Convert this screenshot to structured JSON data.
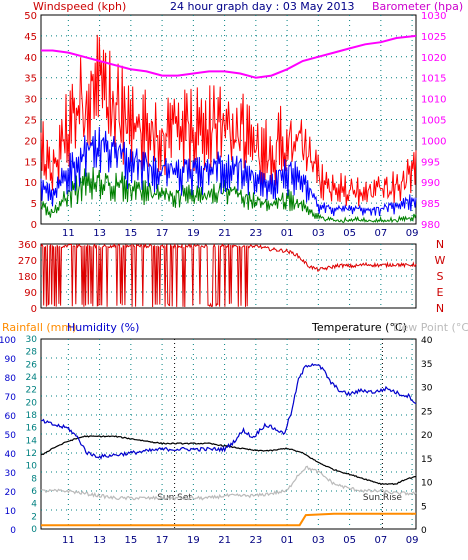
{
  "colors": {
    "wind_gust": "#ff0000",
    "wind_avg": "#0000ff",
    "wind_min": "#008000",
    "barometer": "#ff00ff",
    "wind_dir": "#dd0000",
    "rainfall": "#ff8c00",
    "humidity": "#0000cc",
    "temperature": "#000000",
    "dew_point": "#bbbbbb",
    "grid": "#008080",
    "left_axis_red": "#cc0000",
    "teal_axis": "#008080"
  },
  "chart_data": [
    {
      "type": "line",
      "name": "wind-barometer",
      "title": "24 hour graph day : 03 May 2013",
      "ylabel_left": "Windspeed (kph)",
      "ylabel_right": "Barometer (hpa)",
      "ylim_left": [
        0,
        50
      ],
      "ylim_right": [
        980,
        1030
      ],
      "yticks_left": [
        "0",
        "5",
        "10",
        "15",
        "20",
        "25",
        "30",
        "35",
        "40",
        "45",
        "50"
      ],
      "yticks_right": [
        "980",
        "985",
        "990",
        "995",
        "1000",
        "1005",
        "1010",
        "1015",
        "1020",
        "1025",
        "1030"
      ],
      "x_time_hours": [
        9.25,
        33.25
      ],
      "xticks": [
        "11",
        "13",
        "15",
        "17",
        "19",
        "21",
        "23",
        "01",
        "03",
        "05",
        "07",
        "09"
      ],
      "xtick_hours": [
        11,
        13,
        15,
        17,
        19,
        21,
        23,
        25,
        27,
        29,
        31,
        33
      ],
      "barometer": [
        {
          "t": 9.25,
          "v": 1021.5
        },
        {
          "t": 10,
          "v": 1021.5
        },
        {
          "t": 11,
          "v": 1021
        },
        {
          "t": 12,
          "v": 1020
        },
        {
          "t": 13,
          "v": 1019
        },
        {
          "t": 14,
          "v": 1018
        },
        {
          "t": 15,
          "v": 1017
        },
        {
          "t": 16,
          "v": 1016.5
        },
        {
          "t": 17,
          "v": 1015.5
        },
        {
          "t": 18,
          "v": 1015.5
        },
        {
          "t": 19,
          "v": 1016
        },
        {
          "t": 20,
          "v": 1016.5
        },
        {
          "t": 21,
          "v": 1016.5
        },
        {
          "t": 22,
          "v": 1016
        },
        {
          "t": 23,
          "v": 1015
        },
        {
          "t": 24,
          "v": 1015.5
        },
        {
          "t": 25,
          "v": 1017
        },
        {
          "t": 26,
          "v": 1019
        },
        {
          "t": 27,
          "v": 1020
        },
        {
          "t": 28,
          "v": 1021
        },
        {
          "t": 29,
          "v": 1022
        },
        {
          "t": 30,
          "v": 1023
        },
        {
          "t": 31,
          "v": 1023.5
        },
        {
          "t": 32,
          "v": 1024.5
        },
        {
          "t": 33.25,
          "v": 1025
        }
      ],
      "wind_gust_envelope": [
        {
          "t": 9.25,
          "v": 20
        },
        {
          "t": 10,
          "v": 14
        },
        {
          "t": 11,
          "v": 26
        },
        {
          "t": 12,
          "v": 33
        },
        {
          "t": 13,
          "v": 36
        },
        {
          "t": 14,
          "v": 33
        },
        {
          "t": 15,
          "v": 30
        },
        {
          "t": 16,
          "v": 27
        },
        {
          "t": 17,
          "v": 25
        },
        {
          "t": 18,
          "v": 26
        },
        {
          "t": 19,
          "v": 25
        },
        {
          "t": 20,
          "v": 26
        },
        {
          "t": 21,
          "v": 28
        },
        {
          "t": 22,
          "v": 25
        },
        {
          "t": 23,
          "v": 20
        },
        {
          "t": 24,
          "v": 19
        },
        {
          "t": 25,
          "v": 24
        },
        {
          "t": 26,
          "v": 22
        },
        {
          "t": 27,
          "v": 13
        },
        {
          "t": 28,
          "v": 10
        },
        {
          "t": 29,
          "v": 9
        },
        {
          "t": 30,
          "v": 9
        },
        {
          "t": 31,
          "v": 9
        },
        {
          "t": 32,
          "v": 10
        },
        {
          "t": 33.25,
          "v": 15
        }
      ],
      "wind_avg_envelope": [
        {
          "t": 9.25,
          "v": 11
        },
        {
          "t": 10,
          "v": 8
        },
        {
          "t": 11,
          "v": 15
        },
        {
          "t": 12,
          "v": 19
        },
        {
          "t": 13,
          "v": 21
        },
        {
          "t": 14,
          "v": 19
        },
        {
          "t": 15,
          "v": 17
        },
        {
          "t": 16,
          "v": 16
        },
        {
          "t": 17,
          "v": 14
        },
        {
          "t": 18,
          "v": 15
        },
        {
          "t": 19,
          "v": 14
        },
        {
          "t": 20,
          "v": 15
        },
        {
          "t": 21,
          "v": 16
        },
        {
          "t": 22,
          "v": 15
        },
        {
          "t": 23,
          "v": 12
        },
        {
          "t": 24,
          "v": 11
        },
        {
          "t": 25,
          "v": 15
        },
        {
          "t": 26,
          "v": 12
        },
        {
          "t": 27,
          "v": 5
        },
        {
          "t": 28,
          "v": 4
        },
        {
          "t": 29,
          "v": 4
        },
        {
          "t": 30,
          "v": 4
        },
        {
          "t": 31,
          "v": 4
        },
        {
          "t": 32,
          "v": 5
        },
        {
          "t": 33.25,
          "v": 7
        }
      ],
      "wind_min_envelope": [
        {
          "t": 9.25,
          "v": 5
        },
        {
          "t": 10,
          "v": 3
        },
        {
          "t": 11,
          "v": 8
        },
        {
          "t": 12,
          "v": 11
        },
        {
          "t": 13,
          "v": 12
        },
        {
          "t": 14,
          "v": 11
        },
        {
          "t": 15,
          "v": 10
        },
        {
          "t": 16,
          "v": 9
        },
        {
          "t": 17,
          "v": 8
        },
        {
          "t": 18,
          "v": 8
        },
        {
          "t": 19,
          "v": 8
        },
        {
          "t": 20,
          "v": 8
        },
        {
          "t": 21,
          "v": 9
        },
        {
          "t": 22,
          "v": 8
        },
        {
          "t": 23,
          "v": 6
        },
        {
          "t": 24,
          "v": 5
        },
        {
          "t": 25,
          "v": 7
        },
        {
          "t": 26,
          "v": 5
        },
        {
          "t": 27,
          "v": 2
        },
        {
          "t": 28,
          "v": 1
        },
        {
          "t": 29,
          "v": 1
        },
        {
          "t": 30,
          "v": 1
        },
        {
          "t": 31,
          "v": 1
        },
        {
          "t": 32,
          "v": 1
        },
        {
          "t": 33.25,
          "v": 2
        }
      ]
    },
    {
      "type": "line",
      "name": "wind-direction",
      "ylim": [
        0,
        360
      ],
      "yticks": [
        "0",
        "90",
        "180",
        "270",
        "360"
      ],
      "compass_labels": [
        "N",
        "W",
        "S",
        "E",
        "N"
      ],
      "x_time_hours": [
        9.25,
        33.25
      ],
      "xtick_hours": [
        11,
        13,
        15,
        17,
        19,
        21,
        23,
        25,
        27,
        29,
        31,
        33
      ],
      "direction": [
        {
          "t": 9.25,
          "v": 350
        },
        {
          "t": 9.6,
          "v": 345
        },
        {
          "t": 10.0,
          "v": 20
        },
        {
          "t": 10.6,
          "v": 15
        },
        {
          "t": 11.0,
          "v": 350
        },
        {
          "t": 11.8,
          "v": 345
        },
        {
          "t": 12.5,
          "v": 355
        },
        {
          "t": 13.2,
          "v": 350
        },
        {
          "t": 13.5,
          "v": 20
        },
        {
          "t": 14.2,
          "v": 25
        },
        {
          "t": 14.4,
          "v": 350
        },
        {
          "t": 15.5,
          "v": 345
        },
        {
          "t": 16.2,
          "v": 10
        },
        {
          "t": 16.5,
          "v": 350
        },
        {
          "t": 17.0,
          "v": 15
        },
        {
          "t": 17.4,
          "v": 20
        },
        {
          "t": 17.8,
          "v": 350
        },
        {
          "t": 18.4,
          "v": 10
        },
        {
          "t": 18.7,
          "v": 355
        },
        {
          "t": 20.0,
          "v": 350
        },
        {
          "t": 20.4,
          "v": 15
        },
        {
          "t": 20.6,
          "v": 350
        },
        {
          "t": 21.0,
          "v": 355
        },
        {
          "t": 22.0,
          "v": 350
        },
        {
          "t": 22.6,
          "v": 20
        },
        {
          "t": 22.9,
          "v": 355
        },
        {
          "t": 23.4,
          "v": 340
        },
        {
          "t": 24.0,
          "v": 330
        },
        {
          "t": 25.0,
          "v": 320
        },
        {
          "t": 25.6,
          "v": 300
        },
        {
          "t": 26.4,
          "v": 235
        },
        {
          "t": 27.0,
          "v": 215
        },
        {
          "t": 27.6,
          "v": 225
        },
        {
          "t": 28.3,
          "v": 240
        },
        {
          "t": 29.2,
          "v": 235
        },
        {
          "t": 30.0,
          "v": 245
        },
        {
          "t": 31.0,
          "v": 240
        },
        {
          "t": 32.0,
          "v": 245
        },
        {
          "t": 32.6,
          "v": 240
        },
        {
          "t": 33.25,
          "v": 245
        }
      ]
    },
    {
      "type": "line",
      "name": "rain-humidity-temperature",
      "ylabel_rainfall": "Rainfall (mm)",
      "ylabel_humidity": "Humidity (%)",
      "ylabel_temperature": "Temperature (°C)",
      "ylabel_dewpoint": "Dew Point (°C)",
      "ylim_humidity": [
        0,
        100
      ],
      "ylim_rainfall": [
        0,
        30
      ],
      "ylim_temperature": [
        0,
        40
      ],
      "yticks_humidity": [
        "0",
        "10",
        "20",
        "30",
        "40",
        "50",
        "60",
        "70",
        "80",
        "90",
        "100"
      ],
      "yticks_rainfall": [
        "0",
        "2",
        "4",
        "6",
        "8",
        "10",
        "12",
        "14",
        "16",
        "18",
        "20",
        "22",
        "24",
        "26",
        "28",
        "30"
      ],
      "yticks_temperature": [
        "0",
        "5",
        "10",
        "15",
        "20",
        "25",
        "30",
        "35",
        "40"
      ],
      "x_time_hours": [
        9.25,
        33.25
      ],
      "xticks": [
        "11",
        "13",
        "15",
        "17",
        "19",
        "21",
        "23",
        "01",
        "03",
        "05",
        "07",
        "09"
      ],
      "xtick_hours": [
        11,
        13,
        15,
        17,
        19,
        21,
        23,
        25,
        27,
        29,
        31,
        33
      ],
      "annotations": [
        {
          "label": "Sun Set",
          "t": 17.8
        },
        {
          "label": "Sun Rise",
          "t": 31.1
        }
      ],
      "humidity": [
        {
          "t": 9.25,
          "v": 57
        },
        {
          "t": 10,
          "v": 55
        },
        {
          "t": 11,
          "v": 53
        },
        {
          "t": 11.6,
          "v": 48
        },
        {
          "t": 12.2,
          "v": 40
        },
        {
          "t": 13,
          "v": 38
        },
        {
          "t": 14,
          "v": 39
        },
        {
          "t": 15,
          "v": 40
        },
        {
          "t": 16,
          "v": 41
        },
        {
          "t": 17,
          "v": 42
        },
        {
          "t": 18,
          "v": 42
        },
        {
          "t": 19,
          "v": 42
        },
        {
          "t": 20,
          "v": 42
        },
        {
          "t": 21,
          "v": 42
        },
        {
          "t": 21.6,
          "v": 46
        },
        {
          "t": 22.2,
          "v": 52
        },
        {
          "t": 22.8,
          "v": 48
        },
        {
          "t": 23.6,
          "v": 55
        },
        {
          "t": 24.4,
          "v": 52
        },
        {
          "t": 24.8,
          "v": 50
        },
        {
          "t": 25.3,
          "v": 62
        },
        {
          "t": 25.7,
          "v": 78
        },
        {
          "t": 26.2,
          "v": 86
        },
        {
          "t": 26.8,
          "v": 87
        },
        {
          "t": 27.3,
          "v": 84
        },
        {
          "t": 27.8,
          "v": 77
        },
        {
          "t": 28.5,
          "v": 72
        },
        {
          "t": 29,
          "v": 71
        },
        {
          "t": 29.8,
          "v": 73
        },
        {
          "t": 30.6,
          "v": 72
        },
        {
          "t": 31.4,
          "v": 74
        },
        {
          "t": 32.2,
          "v": 71
        },
        {
          "t": 32.8,
          "v": 70
        },
        {
          "t": 33.25,
          "v": 66
        }
      ],
      "temperature": [
        {
          "t": 9.25,
          "v": 15.5
        },
        {
          "t": 10,
          "v": 17
        },
        {
          "t": 11,
          "v": 18.5
        },
        {
          "t": 12,
          "v": 19.5
        },
        {
          "t": 13,
          "v": 19.5
        },
        {
          "t": 14,
          "v": 19.5
        },
        {
          "t": 15,
          "v": 19
        },
        {
          "t": 16,
          "v": 18.5
        },
        {
          "t": 17,
          "v": 18
        },
        {
          "t": 18,
          "v": 18
        },
        {
          "t": 19,
          "v": 18
        },
        {
          "t": 20,
          "v": 18
        },
        {
          "t": 21,
          "v": 17.5
        },
        {
          "t": 22,
          "v": 17
        },
        {
          "t": 23,
          "v": 16.5
        },
        {
          "t": 24,
          "v": 16.5
        },
        {
          "t": 25,
          "v": 17
        },
        {
          "t": 26,
          "v": 16
        },
        {
          "t": 27,
          "v": 14
        },
        {
          "t": 28,
          "v": 12.5
        },
        {
          "t": 29,
          "v": 11.5
        },
        {
          "t": 30,
          "v": 10.5
        },
        {
          "t": 31,
          "v": 9.5
        },
        {
          "t": 32,
          "v": 9.5
        },
        {
          "t": 32.6,
          "v": 10.5
        },
        {
          "t": 33.25,
          "v": 11
        }
      ],
      "dew_point": [
        {
          "t": 9.25,
          "v": 8
        },
        {
          "t": 10,
          "v": 8
        },
        {
          "t": 11,
          "v": 8
        },
        {
          "t": 12,
          "v": 7.5
        },
        {
          "t": 13,
          "v": 7
        },
        {
          "t": 14,
          "v": 6.5
        },
        {
          "t": 15,
          "v": 6.5
        },
        {
          "t": 16,
          "v": 6.5
        },
        {
          "t": 17,
          "v": 6.5
        },
        {
          "t": 18,
          "v": 6.5
        },
        {
          "t": 19,
          "v": 6.5
        },
        {
          "t": 20,
          "v": 6.5
        },
        {
          "t": 21,
          "v": 7
        },
        {
          "t": 22,
          "v": 7
        },
        {
          "t": 23,
          "v": 7
        },
        {
          "t": 24,
          "v": 7.5
        },
        {
          "t": 25,
          "v": 8
        },
        {
          "t": 25.6,
          "v": 11
        },
        {
          "t": 26.2,
          "v": 13
        },
        {
          "t": 27,
          "v": 12
        },
        {
          "t": 28,
          "v": 9.5
        },
        {
          "t": 29,
          "v": 8.5
        },
        {
          "t": 30,
          "v": 8
        },
        {
          "t": 31,
          "v": 8
        },
        {
          "t": 32,
          "v": 7.5
        },
        {
          "t": 33.25,
          "v": 7.5
        }
      ],
      "rainfall": [
        {
          "t": 9.25,
          "v": 0.6
        },
        {
          "t": 25.8,
          "v": 0.6
        },
        {
          "t": 26.2,
          "v": 2.2
        },
        {
          "t": 28,
          "v": 2.4
        },
        {
          "t": 33.25,
          "v": 2.4
        }
      ]
    }
  ]
}
